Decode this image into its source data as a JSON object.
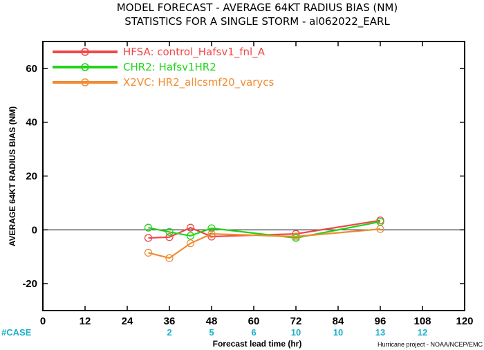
{
  "header": {
    "title_line1": "MODEL FORECAST - AVERAGE 64KT RADIUS BIAS (NM)",
    "title_line2": "STATISTICS FOR A SINGLE STORM - al062022_EARL"
  },
  "footer": {
    "case_label": "#CASE",
    "credit": "Hurricane project - NOAA/NCEP/EMC"
  },
  "chart_data": {
    "type": "line",
    "title": "MODEL FORECAST - AVERAGE 64KT RADIUS BIAS (NM)",
    "subtitle": "STATISTICS FOR A SINGLE STORM - al062022_EARL",
    "xlabel": "Forecast lead time (hr)",
    "ylabel": "AVERAGE 64KT RADIUS BIAS (NM)",
    "xlim": [
      0,
      120
    ],
    "ylim": [
      -30,
      70
    ],
    "xticks": [
      0,
      12,
      24,
      36,
      48,
      60,
      72,
      84,
      96,
      108,
      120
    ],
    "yticks": [
      -20,
      0,
      20,
      40,
      60
    ],
    "ytick_labels": [
      "-20",
      "0",
      "20",
      "40",
      "60"
    ],
    "grid": false,
    "zero_line": true,
    "legend_position": "top-left",
    "series": [
      {
        "name": "HFSA: control_Hafsv1_fnl_A",
        "color": "#f04848",
        "x": [
          30,
          36,
          42,
          48,
          72,
          96
        ],
        "y": [
          -3,
          -2.7,
          0.8,
          -2.5,
          -1.5,
          3.5
        ]
      },
      {
        "name": "CHR2: Hafsv1HR2",
        "color": "#22d41a",
        "x": [
          30,
          36,
          42,
          48,
          72,
          96
        ],
        "y": [
          0.8,
          -0.8,
          -2.2,
          0.6,
          -3,
          3
        ]
      },
      {
        "name": "X2VC: HR2_allcsmf20_varycs",
        "color": "#f08c32",
        "x": [
          30,
          36,
          42,
          48,
          72,
          96
        ],
        "y": [
          -8.5,
          -10.5,
          -5,
          -1.5,
          -2.5,
          0.3
        ]
      }
    ],
    "case_counts": {
      "x": [
        36,
        48,
        60,
        72,
        84,
        96,
        108
      ],
      "labels": [
        "2",
        "5",
        "6",
        "10",
        "10",
        "13",
        "12"
      ]
    }
  }
}
